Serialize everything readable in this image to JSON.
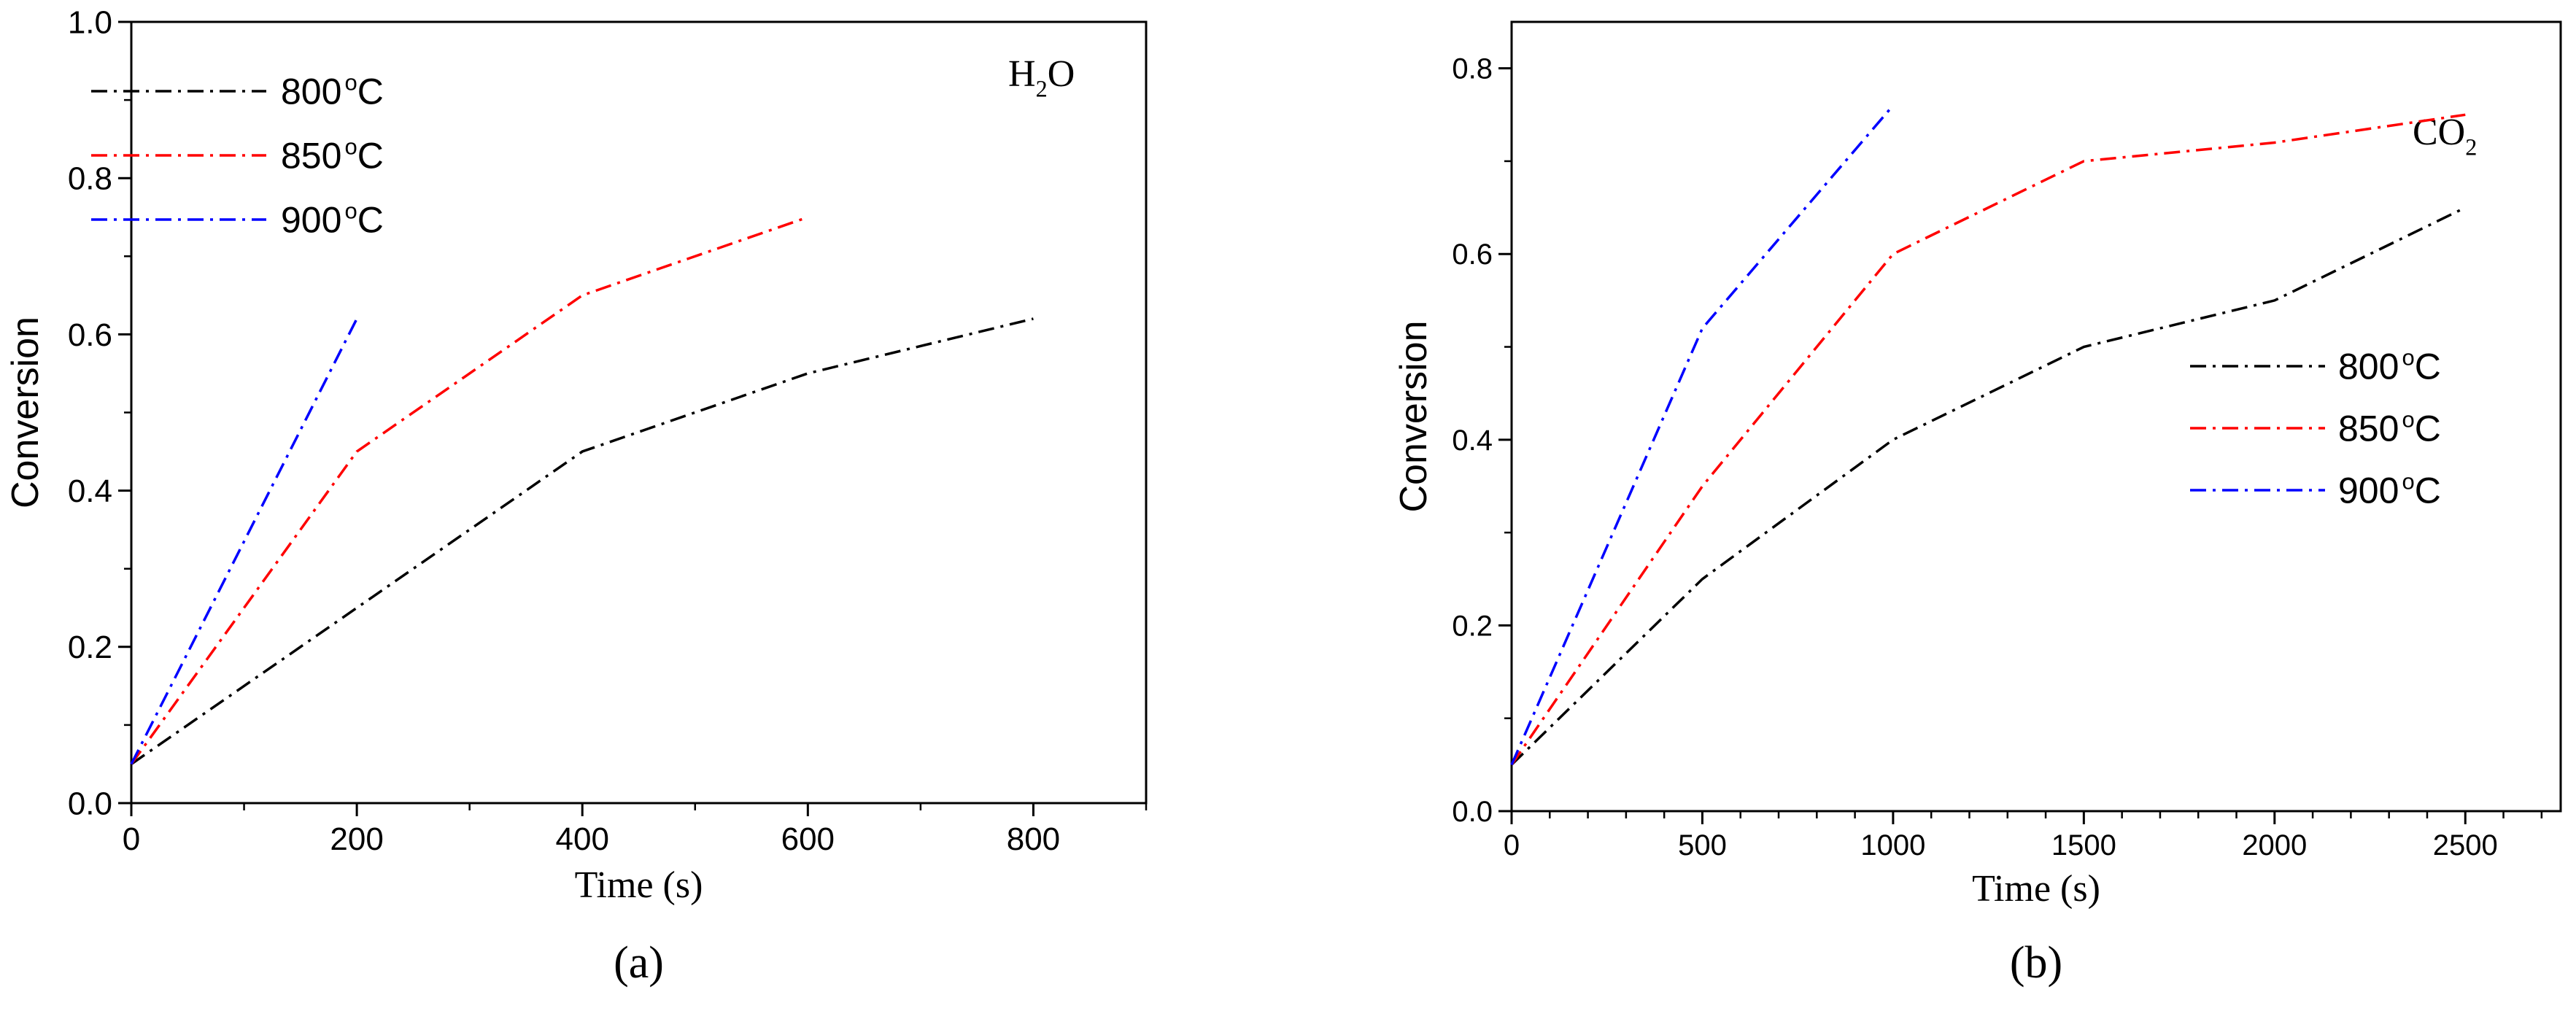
{
  "chart_data": [
    {
      "type": "line",
      "panel_label": "(a)",
      "title": "",
      "annotation": {
        "base": "H",
        "sub": "2",
        "rest": "O"
      },
      "xlabel": "Time (s)",
      "ylabel": "Conversion",
      "xlim": [
        0,
        900
      ],
      "ylim": [
        0,
        1.0
      ],
      "xticks": [
        0,
        200,
        400,
        600,
        800
      ],
      "xtick_labels": [
        "0",
        "200",
        "400",
        "600",
        "800"
      ],
      "x_minor_step": 100,
      "yticks": [
        0.0,
        0.2,
        0.4,
        0.6,
        0.8,
        1.0
      ],
      "ytick_labels": [
        "0.0",
        "0.2",
        "0.4",
        "0.6",
        "0.8",
        "1.0"
      ],
      "y_minor_step": 0.1,
      "legend_position": "top-left",
      "series": [
        {
          "name": "800 °C",
          "temp": "800",
          "unit": "C",
          "sup": "o",
          "color": "#000000",
          "x": [
            0,
            200,
            400,
            600,
            800
          ],
          "y": [
            0.05,
            0.25,
            0.45,
            0.55,
            0.62
          ]
        },
        {
          "name": "850 °C",
          "temp": "850",
          "unit": "C",
          "sup": "o",
          "color": "#ff0000",
          "x": [
            0,
            200,
            400,
            600
          ],
          "y": [
            0.05,
            0.45,
            0.65,
            0.75
          ]
        },
        {
          "name": "900 °C",
          "temp": "900",
          "unit": "C",
          "sup": "o",
          "color": "#0000ff",
          "x": [
            0,
            200
          ],
          "y": [
            0.05,
            0.62
          ]
        }
      ]
    },
    {
      "type": "line",
      "panel_label": "(b)",
      "title": "",
      "annotation": {
        "base": "CO",
        "sub": "2",
        "rest": ""
      },
      "xlabel": "Time (s)",
      "ylabel": "Conversion",
      "xlim": [
        0,
        2750
      ],
      "ylim": [
        0,
        0.85
      ],
      "xticks": [
        0,
        500,
        1000,
        1500,
        2000,
        2500
      ],
      "xtick_labels": [
        "0",
        "500",
        "1000",
        "1500",
        "2000",
        "2500"
      ],
      "x_minor_step": 100,
      "yticks": [
        0.0,
        0.2,
        0.4,
        0.6,
        0.8
      ],
      "ytick_labels": [
        "0.0",
        "0.2",
        "0.4",
        "0.6",
        "0.8"
      ],
      "y_minor_step": 0.1,
      "legend_position": "center-right",
      "series": [
        {
          "name": "800 °C",
          "temp": "800",
          "unit": "C",
          "sup": "o",
          "color": "#000000",
          "x": [
            0,
            500,
            1000,
            1500,
            2000,
            2500
          ],
          "y": [
            0.05,
            0.25,
            0.4,
            0.5,
            0.55,
            0.65
          ]
        },
        {
          "name": "850 °C",
          "temp": "850",
          "unit": "C",
          "sup": "o",
          "color": "#ff0000",
          "x": [
            0,
            500,
            1000,
            1500,
            2000,
            2500
          ],
          "y": [
            0.05,
            0.35,
            0.6,
            0.7,
            0.72,
            0.75
          ]
        },
        {
          "name": "900 °C",
          "temp": "900",
          "unit": "C",
          "sup": "o",
          "color": "#0000ff",
          "x": [
            0,
            500,
            1000
          ],
          "y": [
            0.05,
            0.52,
            0.76
          ]
        }
      ]
    }
  ]
}
